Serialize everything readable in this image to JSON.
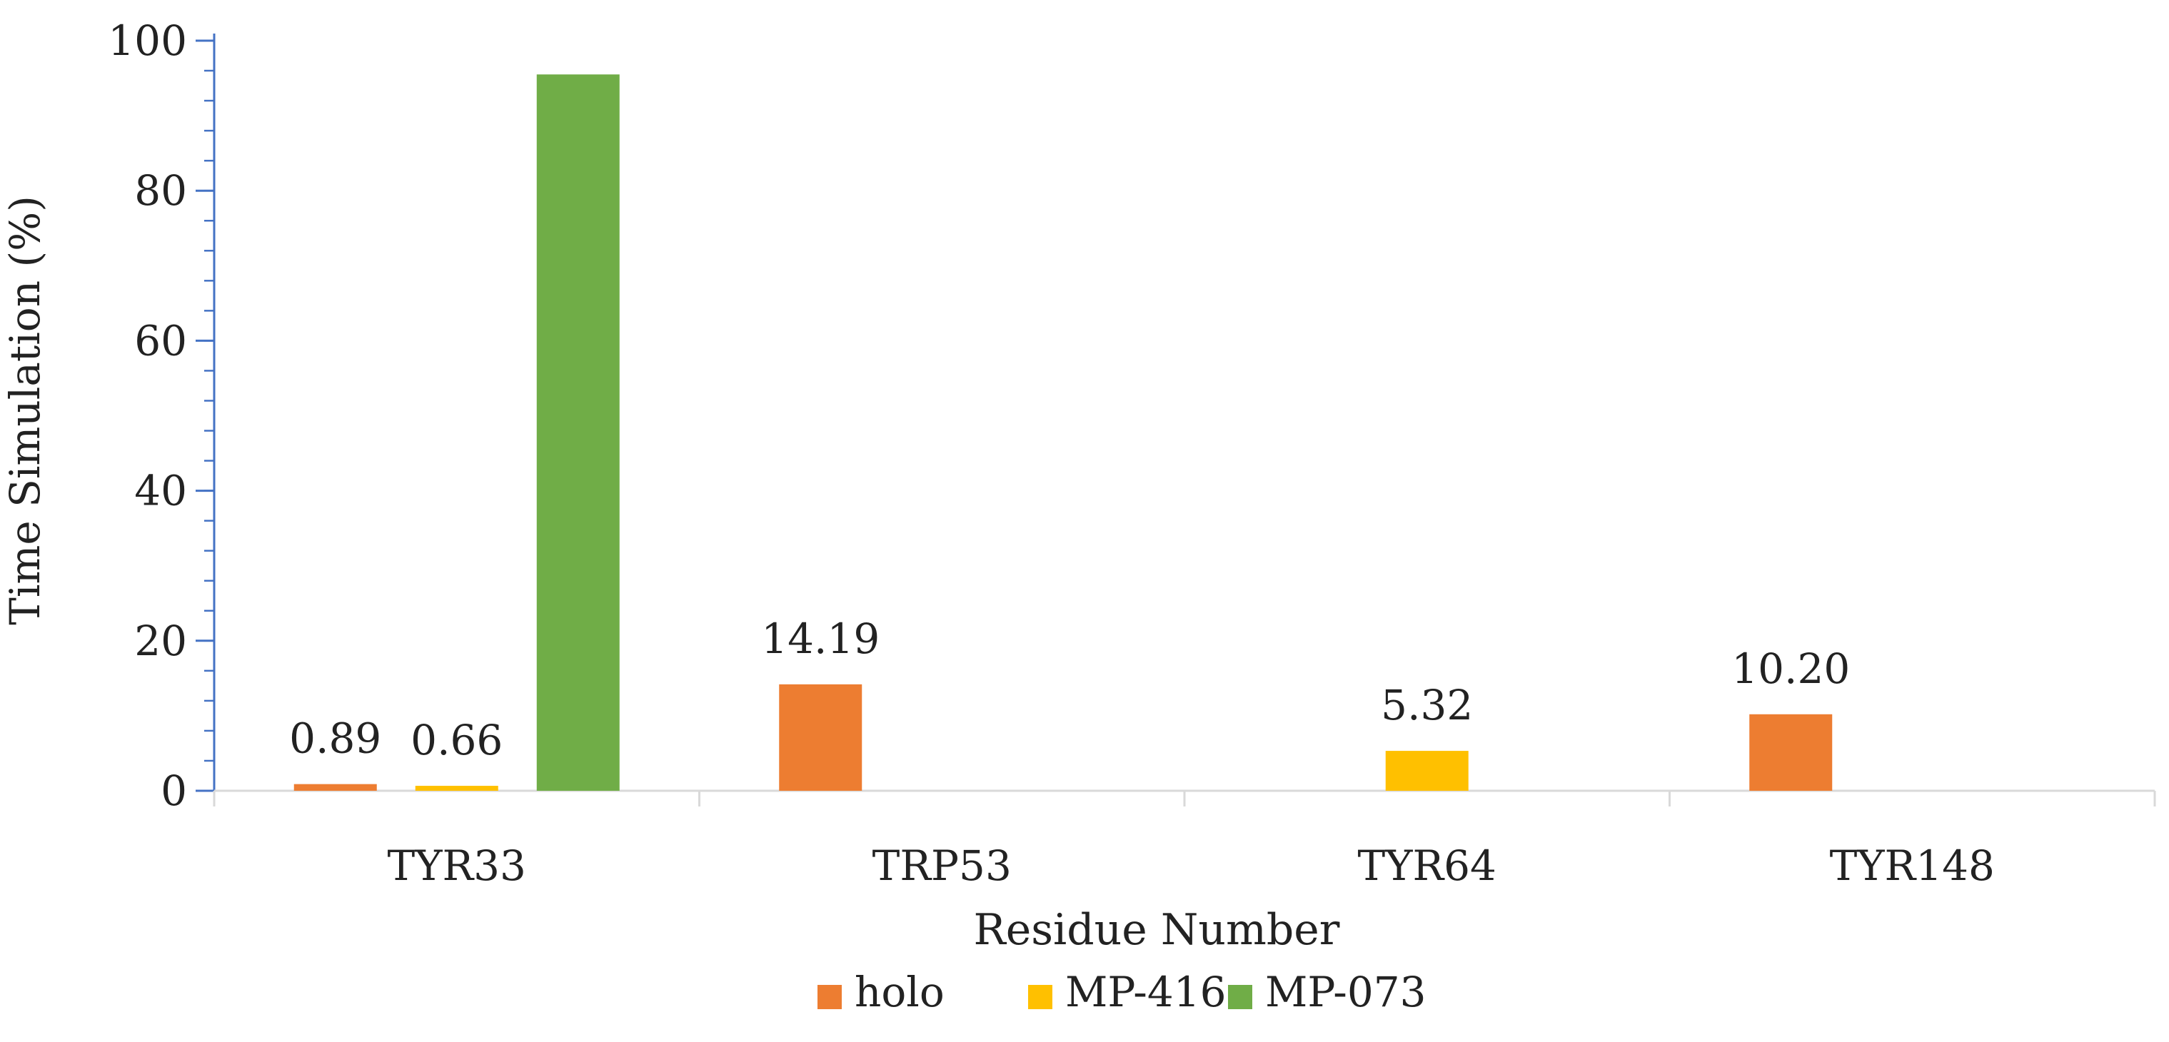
{
  "chart_data": {
    "type": "bar",
    "title": "",
    "xlabel": "Residue Number",
    "ylabel": "Time Simulation (%)",
    "categories": [
      "TYR33",
      "TRP53",
      "TYR64",
      "TYR148"
    ],
    "series": [
      {
        "name": "holo",
        "color": "#ED7D31",
        "values": [
          0.89,
          14.19,
          0,
          10.2
        ],
        "labels": [
          "0.89",
          "14.19",
          "",
          "10.20"
        ]
      },
      {
        "name": "MP-416",
        "color": "#FFC000",
        "values": [
          0.66,
          0,
          5.32,
          0
        ],
        "labels": [
          "0.66",
          "",
          "5.32",
          ""
        ]
      },
      {
        "name": "MP-073",
        "color": "#70AD47",
        "values": [
          95.5,
          0,
          0,
          0
        ],
        "labels": [
          "",
          "",
          "",
          ""
        ]
      }
    ],
    "ylim": [
      0,
      100
    ],
    "yticks": [
      "0",
      "20",
      "40",
      "60",
      "80",
      "100"
    ],
    "ytick_values": [
      0,
      20,
      40,
      60,
      80,
      100
    ],
    "y_minor_step": 4,
    "grid": false,
    "legend_position": "bottom-center",
    "axis_color": "#4472C4",
    "baseline_color": "#D9D9D9"
  }
}
